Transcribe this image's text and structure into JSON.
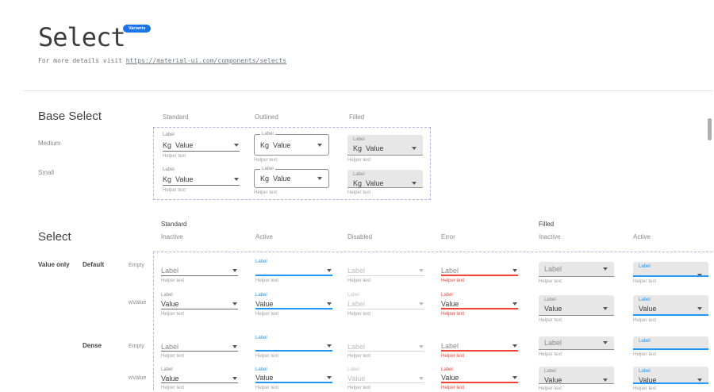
{
  "header": {
    "title": "Select",
    "badge": "Variants",
    "details_prefix": "For more details visit ",
    "details_link": "https://material-ui.com/components/selects"
  },
  "colors": {
    "accent_blue": "#2196F3",
    "error_red": "#f44336",
    "badge_blue": "#1a73e8",
    "frame_dash": "#b7b2ea",
    "filled_bg": "#e7e7e7"
  },
  "base_select": {
    "heading": "Base Select",
    "column_headers": [
      "Standard",
      "Outlined",
      "Filled"
    ],
    "row_headers": [
      "Medium",
      "Small"
    ],
    "cell": {
      "label": "Label",
      "adornment": "Kg",
      "value": "Value",
      "helper": "Helper text"
    }
  },
  "select_section": {
    "heading": "Select",
    "group_headers": [
      "Standard",
      "Filled"
    ],
    "state_headers": [
      "Inactive",
      "Active",
      "Disabled",
      "Error",
      "Inactive",
      "Active"
    ],
    "row_group_labels": {
      "value_only": "Value only",
      "default": "Default",
      "dense": "Dense"
    },
    "row_sub_labels": [
      "Empty",
      "wValue",
      "Empty",
      "wValue"
    ],
    "helper": "Helper text",
    "rows": [
      {
        "name": "default-empty",
        "dense": false,
        "cells": [
          {
            "variant": "standard",
            "state": "inactive",
            "label": null,
            "value": "Label",
            "role": "placeholder"
          },
          {
            "variant": "standard",
            "state": "active",
            "label": "Label",
            "value": "",
            "role": "empty"
          },
          {
            "variant": "standard",
            "state": "disabled",
            "label": null,
            "value": "Label",
            "role": "placeholder"
          },
          {
            "variant": "standard",
            "state": "error",
            "label": null,
            "value": "Label",
            "role": "placeholder"
          },
          {
            "variant": "filled",
            "state": "inactive",
            "label": null,
            "value": "Label",
            "role": "placeholder"
          },
          {
            "variant": "filled",
            "state": "active",
            "label": "Label",
            "value": "",
            "role": "empty"
          }
        ]
      },
      {
        "name": "default-wvalue",
        "dense": false,
        "cells": [
          {
            "variant": "standard",
            "state": "inactive",
            "label": "Label",
            "value": "Value",
            "role": "value"
          },
          {
            "variant": "standard",
            "state": "active",
            "label": "Label",
            "value": "Value",
            "role": "value"
          },
          {
            "variant": "standard",
            "state": "disabled",
            "label": "Label",
            "value": "Label",
            "role": "value"
          },
          {
            "variant": "standard",
            "state": "error",
            "label": "Label",
            "value": "Value",
            "role": "value"
          },
          {
            "variant": "filled",
            "state": "inactive",
            "label": "Label",
            "value": "Value",
            "role": "value"
          },
          {
            "variant": "filled",
            "state": "active",
            "label": "Label",
            "value": "Value",
            "role": "value"
          }
        ]
      },
      {
        "name": "dense-empty",
        "dense": true,
        "cells": [
          {
            "variant": "standard",
            "state": "inactive",
            "label": null,
            "value": "Label",
            "role": "placeholder"
          },
          {
            "variant": "standard",
            "state": "active",
            "label": "Label",
            "value": "",
            "role": "empty"
          },
          {
            "variant": "standard",
            "state": "disabled",
            "label": null,
            "value": "Label",
            "role": "placeholder"
          },
          {
            "variant": "standard",
            "state": "error",
            "label": null,
            "value": "Label",
            "role": "placeholder"
          },
          {
            "variant": "filled",
            "state": "inactive",
            "label": null,
            "value": "Label",
            "role": "placeholder"
          },
          {
            "variant": "filled",
            "state": "active",
            "label": "Label",
            "value": "",
            "role": "empty"
          }
        ]
      },
      {
        "name": "dense-wvalue",
        "dense": true,
        "cells": [
          {
            "variant": "standard",
            "state": "inactive",
            "label": "Label",
            "value": "Value",
            "role": "value"
          },
          {
            "variant": "standard",
            "state": "active",
            "label": "Label",
            "value": "Value",
            "role": "value"
          },
          {
            "variant": "standard",
            "state": "disabled",
            "label": "Label",
            "value": "Value",
            "role": "value"
          },
          {
            "variant": "standard",
            "state": "error",
            "label": "Label",
            "value": "Value",
            "role": "value"
          },
          {
            "variant": "filled",
            "state": "inactive",
            "label": "Label",
            "value": "Value",
            "role": "value"
          },
          {
            "variant": "filled",
            "state": "active",
            "label": "Label",
            "value": "Value",
            "role": "value"
          }
        ]
      }
    ]
  }
}
